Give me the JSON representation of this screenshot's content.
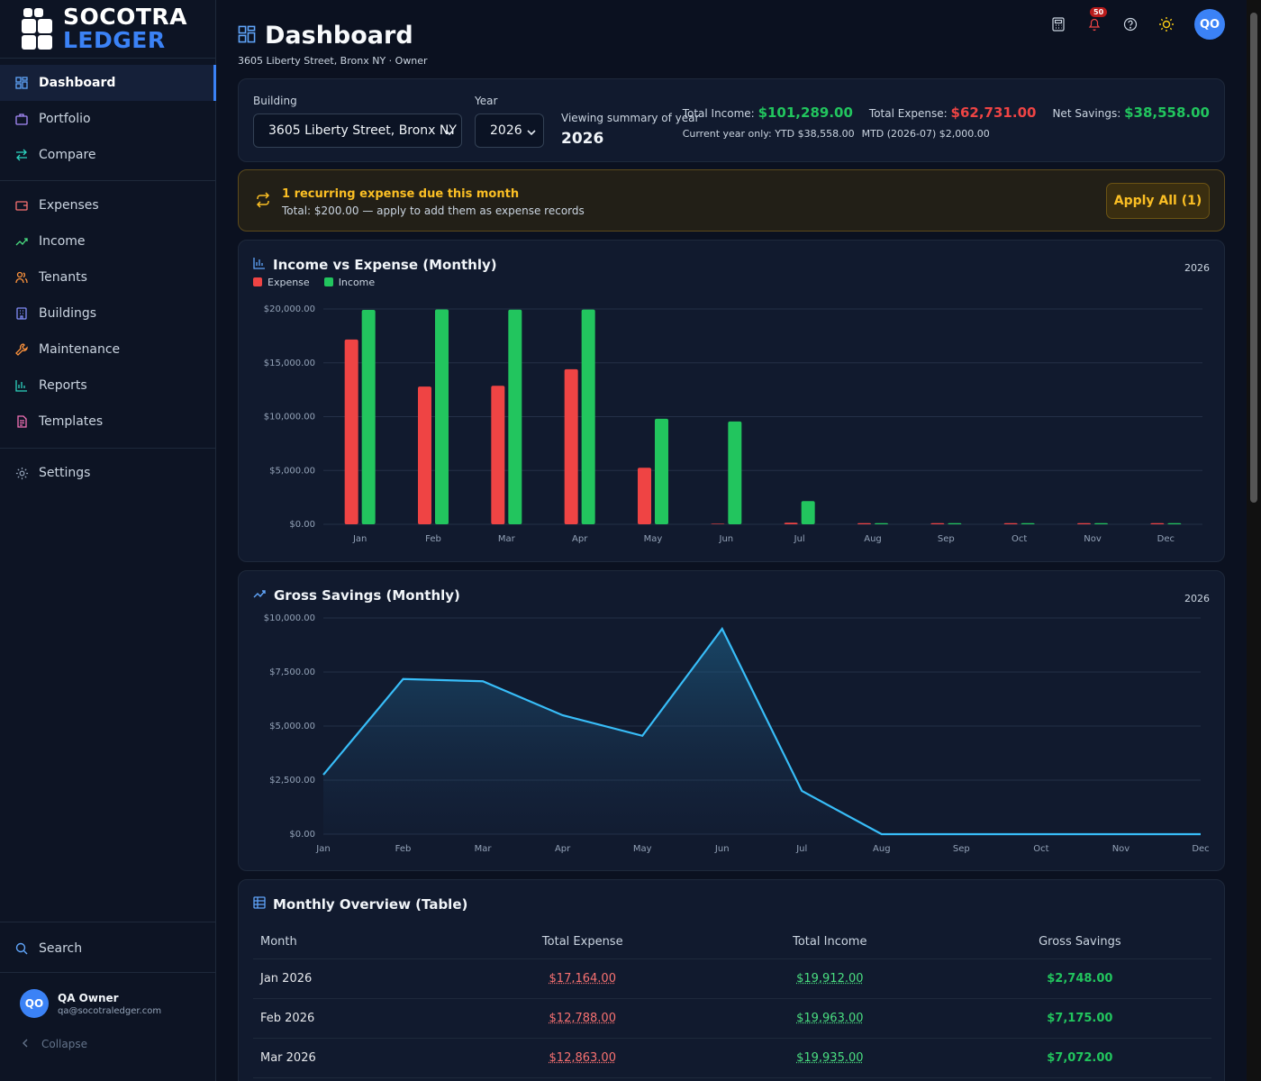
{
  "brand": {
    "line1": "SOCOTRA",
    "line2": "LEDGER"
  },
  "sidebar": {
    "items": [
      {
        "label": "Dashboard",
        "icon": "dashboard-icon"
      },
      {
        "label": "Portfolio",
        "icon": "portfolio-icon"
      },
      {
        "label": "Compare",
        "icon": "compare-icon"
      },
      {
        "label": "Expenses",
        "icon": "expenses-icon"
      },
      {
        "label": "Income",
        "icon": "income-icon"
      },
      {
        "label": "Tenants",
        "icon": "tenants-icon"
      },
      {
        "label": "Buildings",
        "icon": "buildings-icon"
      },
      {
        "label": "Maintenance",
        "icon": "wrench-icon"
      },
      {
        "label": "Reports",
        "icon": "reports-icon"
      },
      {
        "label": "Templates",
        "icon": "templates-icon"
      },
      {
        "label": "Settings",
        "icon": "gear-icon"
      }
    ],
    "search_label": "Search",
    "user": {
      "initials": "QO",
      "name": "QA Owner",
      "email": "qa@socotraledger.com"
    },
    "collapse_label": "Collapse"
  },
  "header": {
    "title": "Dashboard",
    "subtitle": "3605 Liberty Street, Bronx NY · Owner",
    "notification_count": "50",
    "avatar_initials": "QO"
  },
  "filters": {
    "building_label": "Building",
    "building_value": "3605 Liberty Street, Bronx NY",
    "year_label": "Year",
    "year_value": "2026",
    "viewing_label": "Viewing summary of year",
    "viewing_year": "2026"
  },
  "totals": {
    "income_label": "Total Income:",
    "income_value": "$101,289.00",
    "expense_label": "Total Expense:",
    "expense_value": "$62,731.00",
    "savings_label": "Net Savings:",
    "savings_value": "$38,558.00",
    "ytd_text": "Current year only: YTD $38,558.00",
    "mtd_text": "MTD (2026-07) $2,000.00"
  },
  "alert": {
    "title": "1 recurring expense due this month",
    "subtitle": "Total: $200.00 — apply to add them as expense records",
    "button": "Apply All (1)"
  },
  "income_expense_chart": {
    "title": "Income vs Expense (Monthly)",
    "year": "2026",
    "legend": [
      "Expense",
      "Income"
    ]
  },
  "savings_chart": {
    "title": "Gross Savings (Monthly)",
    "year": "2026"
  },
  "chart_data": [
    {
      "type": "bar",
      "title": "Income vs Expense (Monthly)",
      "categories": [
        "Jan",
        "Feb",
        "Mar",
        "Apr",
        "May",
        "Jun",
        "Jul",
        "Aug",
        "Sep",
        "Oct",
        "Nov",
        "Dec"
      ],
      "series": [
        {
          "name": "Expense",
          "color": "#ef4444",
          "values": [
            17164,
            12788,
            12863,
            14400,
            5250,
            50,
            150,
            0,
            0,
            0,
            0,
            0
          ]
        },
        {
          "name": "Income",
          "color": "#22c55e",
          "values": [
            19912,
            19963,
            19935,
            19950,
            9800,
            9550,
            2150,
            0,
            0,
            0,
            0,
            0
          ]
        }
      ],
      "ylim": [
        0,
        20000
      ],
      "yticks": [
        "$0.00",
        "$5,000.00",
        "$10,000.00",
        "$15,000.00",
        "$20,000.00"
      ],
      "grid": true,
      "legend": "top-left"
    },
    {
      "type": "area",
      "title": "Gross Savings (Monthly)",
      "categories": [
        "Jan",
        "Feb",
        "Mar",
        "Apr",
        "May",
        "Jun",
        "Jul",
        "Aug",
        "Sep",
        "Oct",
        "Nov",
        "Dec"
      ],
      "series": [
        {
          "color": "#38bdf8",
          "values": [
            2748,
            7175,
            7072,
            5500,
            4550,
            9500,
            2000,
            0,
            0,
            0,
            0,
            0
          ]
        }
      ],
      "ylim": [
        0,
        10000
      ],
      "yticks": [
        "$0.00",
        "$2,500.00",
        "$5,000.00",
        "$7,500.00",
        "$10,000.00"
      ],
      "grid": true
    }
  ],
  "table": {
    "title": "Monthly Overview (Table)",
    "columns": [
      "Month",
      "Total Expense",
      "Total Income",
      "Gross Savings"
    ],
    "rows": [
      [
        "Jan 2026",
        "$17,164.00",
        "$19,912.00",
        "$2,748.00"
      ],
      [
        "Feb 2026",
        "$12,788.00",
        "$19,963.00",
        "$7,175.00"
      ],
      [
        "Mar 2026",
        "$12,863.00",
        "$19,935.00",
        "$7,072.00"
      ]
    ]
  }
}
